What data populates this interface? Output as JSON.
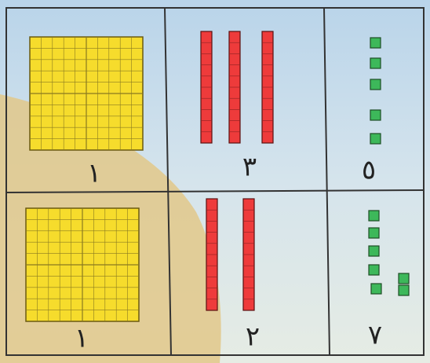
{
  "rows": [
    {
      "hundreds": "١",
      "tens": "٣",
      "ones": "٥"
    },
    {
      "hundreds": "١",
      "tens": "٢",
      "ones": "٧"
    }
  ]
}
